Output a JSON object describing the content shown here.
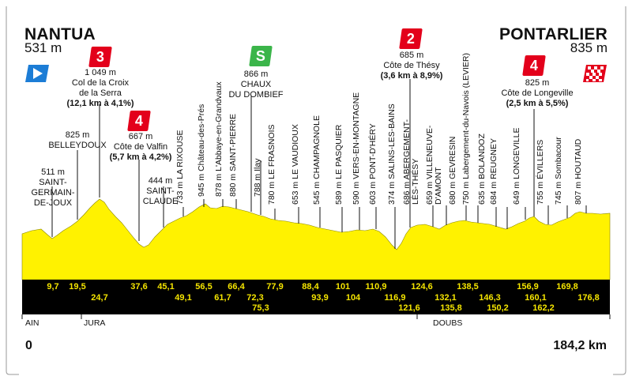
{
  "start": {
    "name": "NANTUA",
    "alt": "531 m"
  },
  "finish": {
    "name": "PONTARLIER",
    "alt": "835 m"
  },
  "climbs": [
    {
      "cat": "3",
      "alt": "1 049 m",
      "name1": "Col de la Croix",
      "name2": "de la Serra",
      "stats": "(12,1 km à 4,1%)"
    },
    {
      "cat": "4",
      "alt": "667 m",
      "name1": "Côte de Valfin",
      "stats": "(5,7 km à 4,2%)"
    },
    {
      "cat": "2",
      "alt": "685 m",
      "name1": "Côte de Thésy",
      "stats": "(3,6 km à 8,9%)"
    },
    {
      "cat": "4",
      "alt": "825 m",
      "name1": "Côte de Longeville",
      "stats": "(2,5 km à 5,5%)"
    }
  ],
  "sprint": {
    "label": "S",
    "alt": "866 m",
    "name1": "CHAUX",
    "name2": "DU DOMBIEF"
  },
  "towns_horizontal": [
    {
      "lines": [
        "825 m",
        "BELLEYDOUX"
      ]
    },
    {
      "lines": [
        "511 m",
        "SAINT-",
        "GERMAIN-",
        "DE-JOUX"
      ]
    },
    {
      "lines": [
        "444 m",
        "SAINT-",
        "CLAUDE"
      ]
    }
  ],
  "towns_vertical": [
    "733 m LA RIXOUSE",
    "945 m Château-des-Prés",
    "878 m L'Abbaye-en-Grandvaux",
    "880 m SAINT-PIERRE",
    "788 m Ilay",
    "780 m LE FRASNOIS",
    "653 m LE VAUDIOUX",
    "545 m CHAMPAGNOLE",
    "589 m LE PASQUIER",
    "590 m VERS-EN-MONTAGNE",
    "603 m PONT-D'HÉRY",
    "374 m SALINS-LES-BAINS",
    "686 m ABERGEMENT-",
    "LÈS-THÉSY",
    "659 m VILLENEUVE-",
    "D'AMONT",
    "680 m GEVRESIN",
    "750 m Labergement-du-Navois (LEVIER)",
    "635 m BOLANDOZ",
    "684 m REUGNEY",
    "649 m LONGEVILLE",
    "755 m ÉVILLERS",
    "745 m Sombacour",
    "807 m HOUTAUD"
  ],
  "km_top": [
    "9,7",
    "19,5",
    "37,6",
    "45,1",
    "56,5",
    "66,4",
    "77,9",
    "88,4",
    "101",
    "110,9",
    "124,6",
    "138,5",
    "156,9",
    "169,8"
  ],
  "km_mid": [
    "24,7",
    "49,1",
    "61,7",
    "72,3",
    "93,9",
    "104",
    "116,9",
    "132,1",
    "146,3",
    "160,1",
    "176,8"
  ],
  "km_low": [
    "75,3",
    "121,6",
    "135,8",
    "150,2",
    "162,2"
  ],
  "regions": [
    "AIN",
    "JURA",
    "DOUBS"
  ],
  "distance_start": "0",
  "distance_end": "184,2 km",
  "colors": {
    "profile": "#fff200",
    "band": "#000000",
    "km_text": "#f5e500",
    "cat3": "#e3001b",
    "sprint": "#3bb54a",
    "start_flag": "#1c7dd6"
  }
}
